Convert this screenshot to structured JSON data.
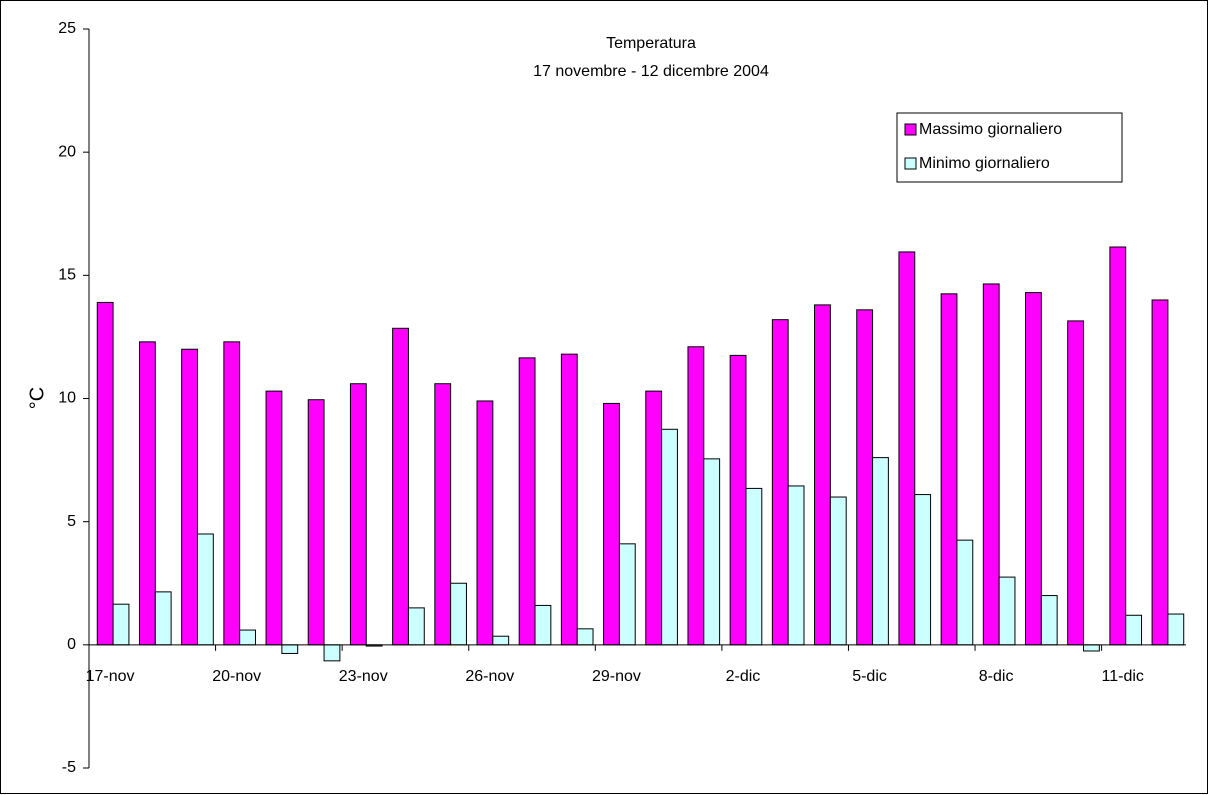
{
  "chart_data": {
    "type": "bar",
    "title": "Temperatura",
    "subtitle": "17 novembre - 12 dicembre 2004",
    "y_label": "°C",
    "categories": [
      "17-nov",
      null,
      null,
      "20-nov",
      null,
      null,
      "23-nov",
      null,
      null,
      "26-nov",
      null,
      null,
      "29-nov",
      null,
      null,
      "2-dic",
      null,
      null,
      "5-dic",
      null,
      null,
      "8-dic",
      null,
      null,
      "11-dic",
      null
    ],
    "series": [
      {
        "name": "Massimo giornaliero",
        "color": "#ff00ff",
        "values": [
          13.9,
          12.3,
          12.0,
          12.3,
          10.3,
          9.95,
          10.6,
          12.85,
          10.6,
          9.9,
          11.65,
          11.8,
          9.8,
          10.3,
          12.1,
          11.75,
          13.2,
          13.8,
          13.6,
          15.95,
          14.25,
          14.65,
          14.3,
          13.15,
          16.15,
          14.0
        ]
      },
      {
        "name": "Minimo giornaliero",
        "color": "#ccffff",
        "values": [
          1.65,
          2.15,
          4.5,
          0.6,
          -0.35,
          -0.65,
          -0.05,
          1.5,
          2.5,
          0.35,
          1.6,
          0.65,
          4.1,
          8.75,
          7.55,
          6.35,
          6.45,
          6.0,
          7.6,
          6.1,
          4.25,
          2.75,
          2.0,
          -0.25,
          1.2,
          1.25
        ]
      }
    ],
    "ylim": [
      -5,
      25
    ],
    "yticks": [
      -5,
      0,
      5,
      10,
      15,
      20,
      25
    ],
    "grid": false,
    "legend": "top-right"
  }
}
